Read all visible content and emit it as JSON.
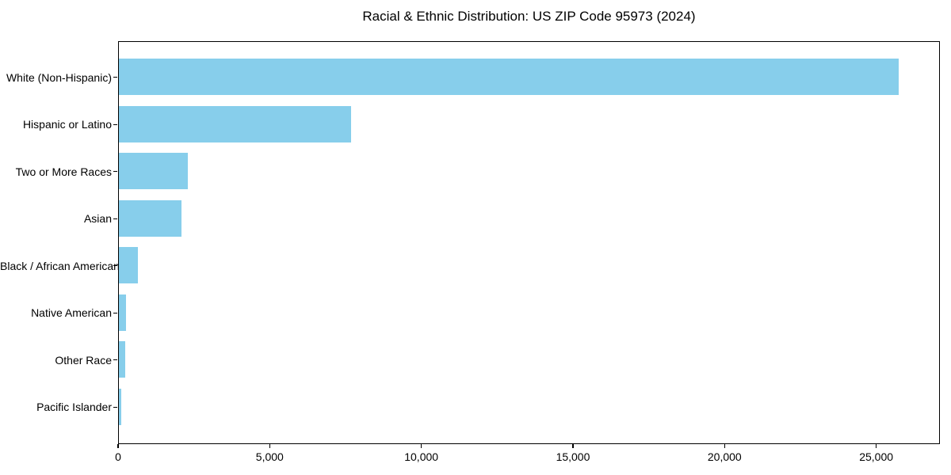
{
  "chart_data": {
    "type": "bar",
    "orientation": "horizontal",
    "title": "Racial & Ethnic Distribution: US ZIP Code 95973 (2024)",
    "categories": [
      "White (Non-Hispanic)",
      "Hispanic or Latino",
      "Two or More Races",
      "Asian",
      "Black / African American",
      "Native American",
      "Other Race",
      "Pacific Islander"
    ],
    "values": [
      25780,
      7670,
      2290,
      2060,
      640,
      235,
      210,
      80
    ],
    "xlabel": "",
    "ylabel": "",
    "xlim": [
      0,
      27100
    ],
    "xticks": [
      0,
      5000,
      10000,
      15000,
      20000,
      25000
    ],
    "xticklabels": [
      "0",
      "5,000",
      "10,000",
      "15,000",
      "20,000",
      "25,000"
    ],
    "bar_color": "#87CEEB",
    "axis_color": "#000000",
    "background": "#ffffff",
    "grid": false,
    "legend": "none"
  }
}
